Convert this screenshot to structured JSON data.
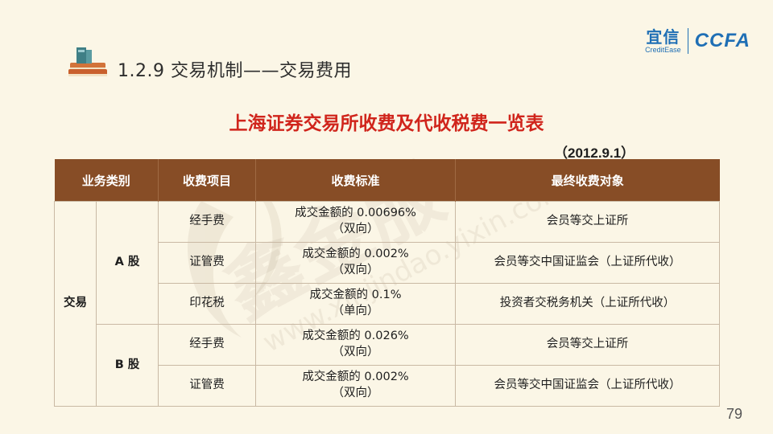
{
  "header": {
    "section_title": "1.2.9 交易机制——交易费用",
    "logo": {
      "yixin_cn": "宜信",
      "yixin_en": "CreditEase",
      "ccfa": "CCFA"
    }
  },
  "table_title": "上海证券交易所收费及代收税费一览表",
  "date_label": "（2012.9.1）",
  "watermark_text": "www.xinjindao.yixin.com",
  "columns": [
    "业务类别",
    "收费项目",
    "收费标准",
    "最终收费对象"
  ],
  "rows": {
    "category": "交易",
    "groups": [
      {
        "name": "A 股",
        "items": [
          {
            "item": "经手费",
            "standard": "成交金额的 0.00696%",
            "direction": "（双向）",
            "payer": "会员等交上证所"
          },
          {
            "item": "证管费",
            "standard": "成交金额的 0.002%",
            "direction": "（双向）",
            "payer": "会员等交中国证监会（上证所代收）"
          },
          {
            "item": "印花税",
            "standard": "成交金额的 0.1%",
            "direction": "（单向）",
            "payer": "投资者交税务机关（上证所代收）"
          }
        ]
      },
      {
        "name": "B 股",
        "items": [
          {
            "item": "经手费",
            "standard": "成交金额的 0.026%",
            "direction": "（双向）",
            "payer": "会员等交上证所"
          },
          {
            "item": "证管费",
            "standard": "成交金额的 0.002%",
            "direction": "（双向）",
            "payer": "会员等交中国证监会（上证所代收）"
          }
        ]
      }
    ]
  },
  "page_number": "79",
  "colors": {
    "header_bg": "#874d26",
    "title_red": "#d0251c",
    "logo_blue": "#1f6fb5",
    "background": "#fbf6e6"
  }
}
